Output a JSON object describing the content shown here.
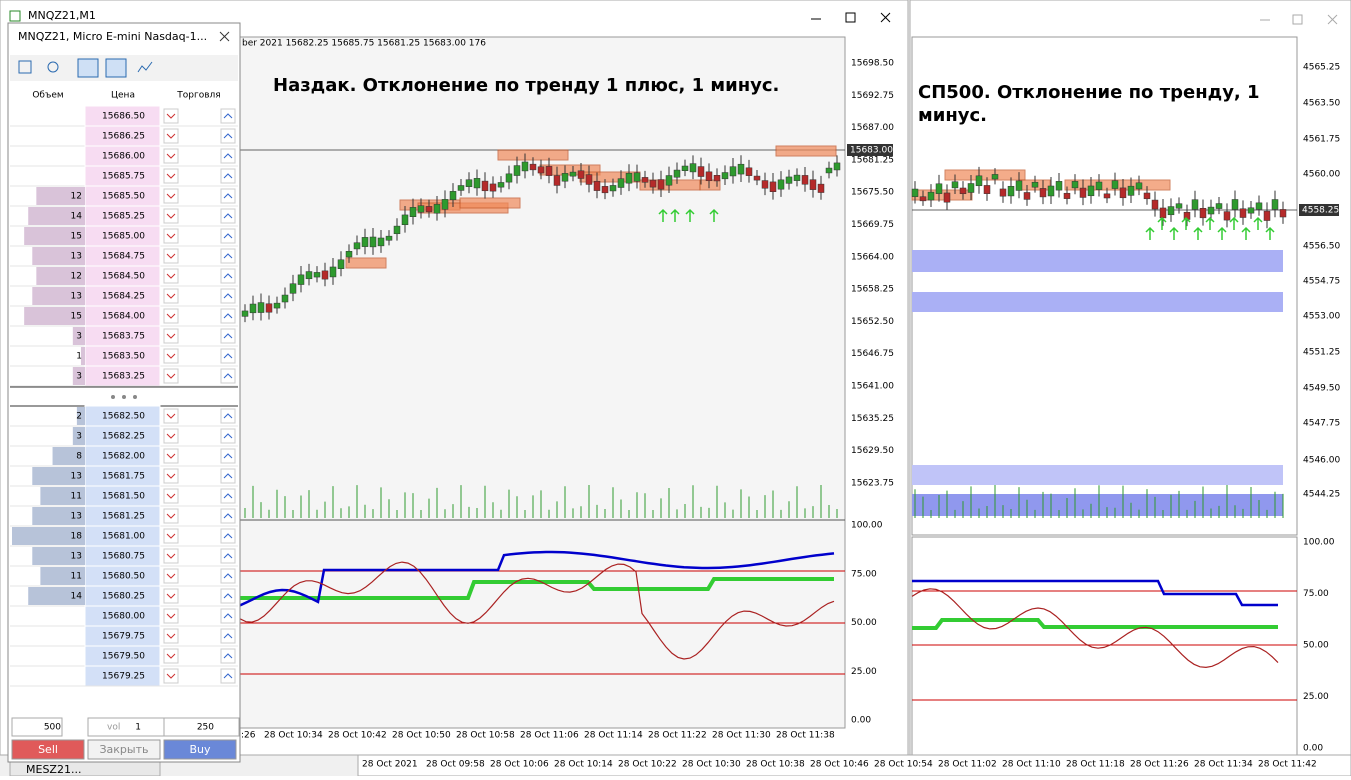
{
  "left_window": {
    "title": "MNQZ21,M1",
    "info": "ber 2021   15682.25  15685.75  15681.25  15683.00   176",
    "annotation": "Наздак. Отклонение по тренду 1 плюс, 1 минус.",
    "price_axis": [
      "15698.50",
      "15692.75",
      "15687.00",
      "15681.25",
      "15675.50",
      "15669.75",
      "15664.00",
      "15658.25",
      "15652.50",
      "15646.75",
      "15641.00",
      "15635.25",
      "15629.50",
      "15623.75"
    ],
    "current_price": "15683.00",
    "indicator_axis": [
      "100.00",
      "75.00",
      "50.00",
      "25.00",
      "0.00"
    ],
    "time_axis": [
      ":26",
      "28 Oct 10:34",
      "28 Oct 10:42",
      "28 Oct 10:50",
      "28 Oct 10:58",
      "28 Oct 11:06",
      "28 Oct 11:14",
      "28 Oct 11:22",
      "28 Oct 11:30",
      "28 Oct 11:38"
    ]
  },
  "dom": {
    "title": "MNQZ21, Micro E-mini Nasdaq-1...",
    "columns": [
      "Объем",
      "Цена",
      "Торговля"
    ],
    "asks": [
      {
        "volume": null,
        "price": "15686.50"
      },
      {
        "volume": null,
        "price": "15686.25"
      },
      {
        "volume": null,
        "price": "15686.00"
      },
      {
        "volume": null,
        "price": "15685.75"
      },
      {
        "volume": 12,
        "price": "15685.50"
      },
      {
        "volume": 14,
        "price": "15685.25"
      },
      {
        "volume": 15,
        "price": "15685.00"
      },
      {
        "volume": 13,
        "price": "15684.75"
      },
      {
        "volume": 12,
        "price": "15684.50"
      },
      {
        "volume": 13,
        "price": "15684.25"
      },
      {
        "volume": 15,
        "price": "15684.00"
      },
      {
        "volume": 3,
        "price": "15683.75"
      },
      {
        "volume": 1,
        "price": "15683.50"
      },
      {
        "volume": 3,
        "price": "15683.25"
      }
    ],
    "bids": [
      {
        "volume": 2,
        "price": "15682.50"
      },
      {
        "volume": 3,
        "price": "15682.25"
      },
      {
        "volume": 8,
        "price": "15682.00"
      },
      {
        "volume": 13,
        "price": "15681.75"
      },
      {
        "volume": 11,
        "price": "15681.50"
      },
      {
        "volume": 13,
        "price": "15681.25"
      },
      {
        "volume": 18,
        "price": "15681.00"
      },
      {
        "volume": 13,
        "price": "15680.75"
      },
      {
        "volume": 11,
        "price": "15680.50"
      },
      {
        "volume": 14,
        "price": "15680.25"
      },
      {
        "volume": null,
        "price": "15680.00"
      },
      {
        "volume": null,
        "price": "15679.75"
      },
      {
        "volume": null,
        "price": "15679.50"
      },
      {
        "volume": null,
        "price": "15679.25"
      }
    ],
    "controls": {
      "lots": "500",
      "vol_label": "vol",
      "vol": "1",
      "qty": "250"
    },
    "buttons": [
      "Sell",
      "Закрыть",
      "Buy"
    ]
  },
  "right_window": {
    "annotation": "СП500. Отклонение по тренду, 1 минус.",
    "price_axis": [
      "4565.25",
      "4563.50",
      "4561.75",
      "4560.00",
      "4556.50",
      "4554.75",
      "4553.00",
      "4551.25",
      "4549.50",
      "4547.75",
      "4546.00",
      "4544.25"
    ],
    "current_price": "4558.25",
    "indicator_axis": [
      "100.00",
      "75.00",
      "50.00",
      "25.00",
      "0.00"
    ]
  },
  "bottom_axis": [
    "28 Oct 2021",
    "28 Oct 09:58",
    "28 Oct 10:06",
    "28 Oct 10:14",
    "28 Oct 10:22",
    "28 Oct 10:30",
    "28 Oct 10:38",
    "28 Oct 10:46",
    "28 Oct 10:54",
    "28 Oct 11:02",
    "28 Oct 11:10",
    "28 Oct 11:18",
    "28 Oct 11:26",
    "28 Oct 11:34",
    "28 Oct 11:42"
  ],
  "minimized": "MESZ21..."
}
